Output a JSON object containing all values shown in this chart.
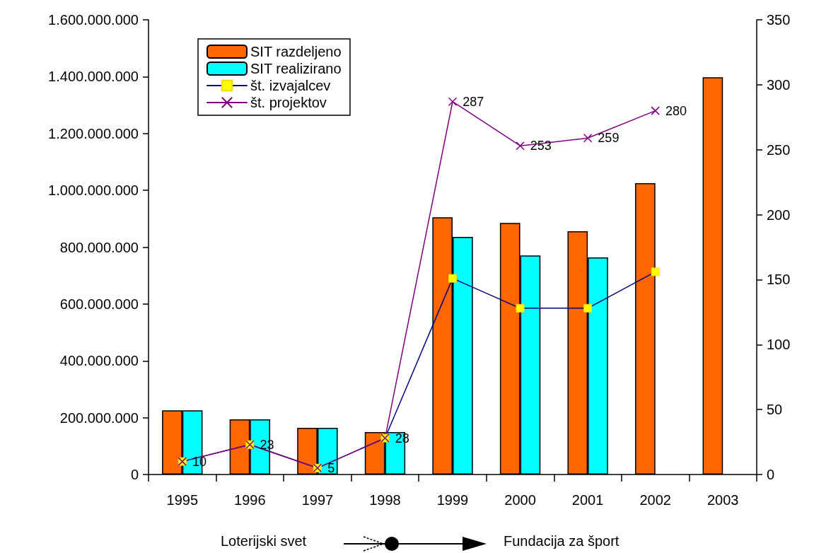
{
  "chart_data": {
    "type": "bar",
    "categories": [
      "1995",
      "1996",
      "1997",
      "1998",
      "1999",
      "2000",
      "2001",
      "2002",
      "2003"
    ],
    "series": [
      {
        "name": "SIT razdeljeno",
        "color": "#ff6600",
        "values": [
          226000000,
          194000000,
          164000000,
          149000000,
          905000000,
          885000000,
          856000000,
          1025000000,
          1398000000
        ]
      },
      {
        "name": "SIT realizirano",
        "color": "#00ffff",
        "values": [
          226000000,
          194000000,
          164000000,
          149000000,
          836000000,
          771000000,
          764000000,
          null,
          null
        ]
      },
      {
        "name": "št. izvajalcev",
        "type": "line",
        "axis": "y2",
        "color": "#000080",
        "marker": "square",
        "values": [
          10,
          23,
          5,
          28,
          151,
          128,
          128,
          156,
          null
        ]
      },
      {
        "name": "št. projektov",
        "type": "line",
        "axis": "y2",
        "color": "#800080",
        "marker": "cross",
        "values": [
          10,
          23,
          5,
          28,
          287,
          253,
          259,
          280,
          null
        ],
        "value_labels": [
          "10",
          "23",
          "5",
          "28",
          "287",
          "253",
          "259",
          "280",
          null
        ]
      }
    ],
    "ylim": [
      0,
      1600000000
    ],
    "yticks": [
      {
        "value": 0,
        "label": "0"
      },
      {
        "value": 200000000,
        "label": "200.000.000"
      },
      {
        "value": 400000000,
        "label": "400.000.000"
      },
      {
        "value": 600000000,
        "label": "600.000.000"
      },
      {
        "value": 800000000,
        "label": "800.000.000"
      },
      {
        "value": 1000000000,
        "label": "1.000.000.000"
      },
      {
        "value": 1200000000,
        "label": "1.200.000.000"
      },
      {
        "value": 1400000000,
        "label": "1.400.000.000"
      },
      {
        "value": 1600000000,
        "label": "1.600.000.000"
      }
    ],
    "y2lim": [
      0,
      350
    ],
    "y2ticks": [
      0,
      50,
      100,
      150,
      200,
      250,
      300,
      350
    ],
    "legend": "top left",
    "grid": false,
    "annotations": [
      "Loterijski svet",
      "Fundacija za šport"
    ]
  }
}
